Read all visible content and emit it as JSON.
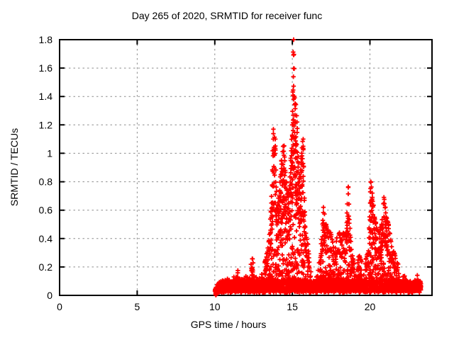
{
  "chart_data": {
    "type": "scatter",
    "title": "Day 265 of 2020, SRMTID for receiver func",
    "xlabel": "GPS time / hours",
    "ylabel": "SRMTID / TECUs",
    "xlim": [
      0,
      24
    ],
    "ylim": [
      0,
      1.8
    ],
    "xticks": [
      0,
      5,
      10,
      15,
      20
    ],
    "yticks": [
      0,
      0.2,
      0.4,
      0.6,
      0.8,
      1,
      1.2,
      1.4,
      1.6,
      1.8
    ],
    "grid": true,
    "legend": "none",
    "marker": "plus",
    "marker_color": "#ff0000",
    "border_color": "#000000",
    "grid_color": "#8c8c8c",
    "background": "#ffffff",
    "data_start_hour": 10.02,
    "data_end_hour": 23.3,
    "zero_cluster_hour": 10.05,
    "envelope": [
      [
        10.02,
        0.05
      ],
      [
        10.15,
        0.08
      ],
      [
        10.35,
        0.1
      ],
      [
        10.6,
        0.12
      ],
      [
        10.85,
        0.13
      ],
      [
        11.05,
        0.12
      ],
      [
        11.25,
        0.15
      ],
      [
        11.45,
        0.22
      ],
      [
        11.6,
        0.15
      ],
      [
        11.8,
        0.12
      ],
      [
        12.0,
        0.16
      ],
      [
        12.2,
        0.14
      ],
      [
        12.4,
        0.27
      ],
      [
        12.55,
        0.2
      ],
      [
        12.7,
        0.14
      ],
      [
        12.9,
        0.16
      ],
      [
        13.1,
        0.2
      ],
      [
        13.3,
        0.26
      ],
      [
        13.5,
        0.38
      ],
      [
        13.65,
        0.65
      ],
      [
        13.78,
        1.17
      ],
      [
        13.9,
        1.1
      ],
      [
        14.0,
        0.6
      ],
      [
        14.15,
        0.7
      ],
      [
        14.3,
        0.95
      ],
      [
        14.45,
        1.05
      ],
      [
        14.6,
        0.8
      ],
      [
        14.75,
        0.65
      ],
      [
        14.9,
        0.95
      ],
      [
        15.0,
        1.2
      ],
      [
        15.08,
        1.8
      ],
      [
        15.18,
        1.35
      ],
      [
        15.3,
        1.22
      ],
      [
        15.45,
        0.8
      ],
      [
        15.6,
        1.0
      ],
      [
        15.7,
        1.1
      ],
      [
        15.85,
        0.45
      ],
      [
        16.0,
        0.35
      ],
      [
        16.15,
        0.2
      ],
      [
        16.3,
        0.12
      ],
      [
        16.45,
        0.13
      ],
      [
        16.6,
        0.18
      ],
      [
        16.8,
        0.25
      ],
      [
        17.0,
        0.62
      ],
      [
        17.15,
        0.5
      ],
      [
        17.3,
        0.45
      ],
      [
        17.5,
        0.45
      ],
      [
        17.7,
        0.3
      ],
      [
        17.85,
        0.4
      ],
      [
        18.0,
        0.45
      ],
      [
        18.15,
        0.38
      ],
      [
        18.3,
        0.45
      ],
      [
        18.45,
        0.4
      ],
      [
        18.6,
        0.76
      ],
      [
        18.72,
        0.45
      ],
      [
        18.85,
        0.28
      ],
      [
        19.0,
        0.22
      ],
      [
        19.15,
        0.18
      ],
      [
        19.3,
        0.28
      ],
      [
        19.45,
        0.24
      ],
      [
        19.6,
        0.2
      ],
      [
        19.75,
        0.25
      ],
      [
        19.9,
        0.32
      ],
      [
        20.05,
        0.8
      ],
      [
        20.15,
        0.72
      ],
      [
        20.3,
        0.55
      ],
      [
        20.45,
        0.48
      ],
      [
        20.6,
        0.42
      ],
      [
        20.75,
        0.5
      ],
      [
        20.9,
        0.69
      ],
      [
        21.05,
        0.55
      ],
      [
        21.2,
        0.5
      ],
      [
        21.35,
        0.38
      ],
      [
        21.5,
        0.32
      ],
      [
        21.65,
        0.26
      ],
      [
        21.8,
        0.22
      ],
      [
        22.0,
        0.2
      ],
      [
        22.15,
        0.17
      ],
      [
        22.3,
        0.14
      ],
      [
        22.5,
        0.11
      ],
      [
        22.7,
        0.09
      ],
      [
        22.85,
        0.1
      ],
      [
        23.0,
        0.15
      ],
      [
        23.1,
        0.17
      ],
      [
        23.2,
        0.12
      ],
      [
        23.3,
        0.08
      ]
    ]
  }
}
